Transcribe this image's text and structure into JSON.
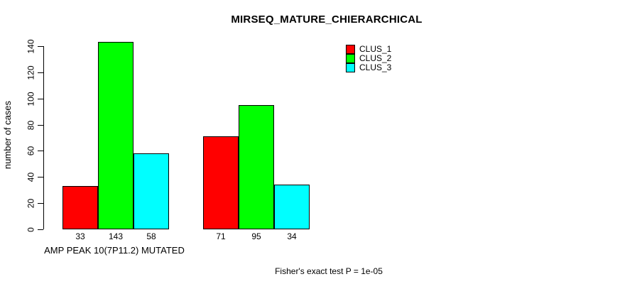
{
  "chart_data": {
    "type": "bar",
    "title": "MIRSEQ_MATURE_CHIERARCHICAL",
    "ylabel": "number of cases",
    "group_labels": [
      "AMP PEAK 10(7P11.2) MUTATED",
      ""
    ],
    "series": [
      {
        "name": "CLUS_1",
        "color": "#ff0000",
        "values": [
          33,
          71
        ]
      },
      {
        "name": "CLUS_2",
        "color": "#00ff00",
        "values": [
          143,
          95
        ]
      },
      {
        "name": "CLUS_3",
        "color": "#00ffff",
        "values": [
          58,
          34
        ]
      }
    ],
    "yticks": [
      0,
      20,
      40,
      60,
      80,
      100,
      120,
      140
    ],
    "ylim": [
      0,
      140
    ],
    "grid": false,
    "legend_position": "top-right",
    "bar_border_color": "#000000",
    "annotation": "Fisher's exact test P = 1e-05"
  }
}
